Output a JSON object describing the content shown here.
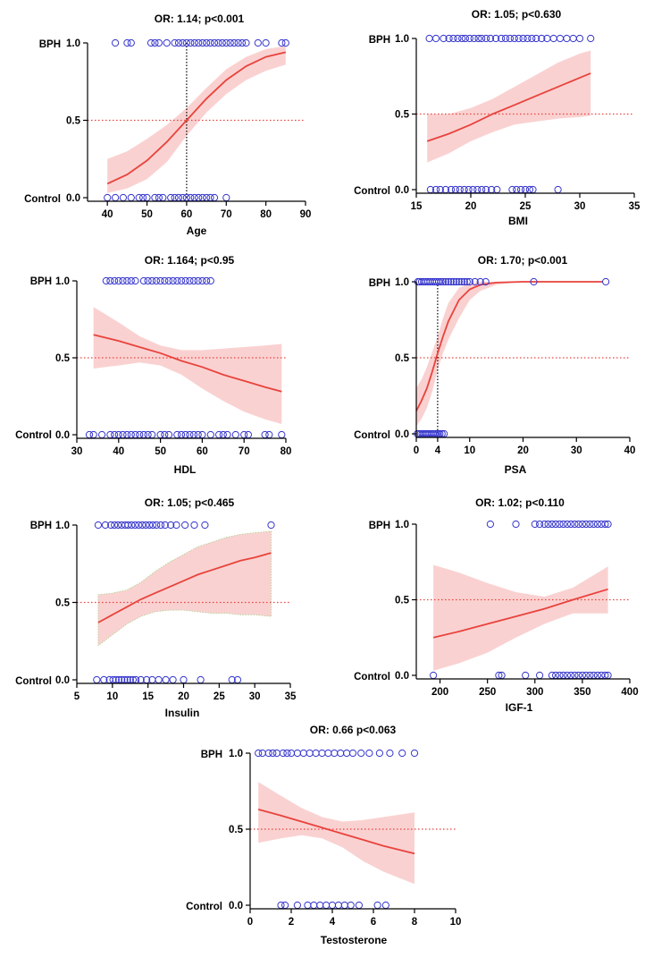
{
  "figure": {
    "description_free": true
  },
  "chart_data": [
    {
      "type": "scatter",
      "title": "OR: 1.14; p<0.001",
      "xlabel": "Age",
      "ylabel": "",
      "xlim": [
        35,
        90
      ],
      "ylim": [
        0,
        1
      ],
      "xticks": [
        40,
        50,
        60,
        70,
        80,
        90
      ],
      "yticks": [
        0.0,
        0.5,
        1.0
      ],
      "ytick_labels": [
        "0.0",
        "0.5",
        "1.0"
      ],
      "category_labels": {
        "top": "BPH",
        "bottom": "Control"
      },
      "series": [
        {
          "name": "BPH",
          "y": 1,
          "x": [
            42,
            45,
            46,
            51,
            52,
            53,
            55,
            57,
            58,
            59,
            60,
            61,
            62,
            63,
            64,
            65,
            66,
            67,
            68,
            69,
            70,
            71,
            72,
            73,
            74,
            75,
            78,
            80,
            84,
            85
          ]
        },
        {
          "name": "Control",
          "y": 0,
          "x": [
            40,
            42,
            44,
            46,
            48,
            49,
            50,
            52,
            53,
            54,
            56,
            57,
            58,
            59,
            60,
            61,
            62,
            63,
            64,
            65,
            66,
            67,
            70
          ]
        }
      ],
      "fit": {
        "x": [
          40,
          45,
          50,
          55,
          60,
          65,
          70,
          75,
          80,
          85
        ],
        "y": [
          0.09,
          0.15,
          0.24,
          0.36,
          0.5,
          0.64,
          0.76,
          0.85,
          0.91,
          0.94
        ]
      },
      "ci_upper": [
        0.25,
        0.3,
        0.38,
        0.47,
        0.58,
        0.71,
        0.83,
        0.91,
        0.96,
        0.98
      ],
      "ci_lower": [
        0.03,
        0.06,
        0.12,
        0.23,
        0.4,
        0.55,
        0.67,
        0.76,
        0.82,
        0.86
      ],
      "reference_y": 0.5,
      "reference_x": 60
    },
    {
      "type": "scatter",
      "title": "OR: 1.05; p<0.630",
      "xlabel": "BMI",
      "ylabel": "",
      "xlim": [
        15,
        35
      ],
      "ylim": [
        0,
        1
      ],
      "xticks": [
        15,
        20,
        25,
        30,
        35
      ],
      "yticks": [
        0.0,
        0.5,
        1.0
      ],
      "ytick_labels": [
        "0.0",
        "0.5",
        "1.0"
      ],
      "category_labels": {
        "top": "BPH",
        "bottom": "Control"
      },
      "series": [
        {
          "name": "BPH",
          "y": 1,
          "x": [
            16.2,
            16.8,
            17.5,
            18,
            18.4,
            18.8,
            19.2,
            19.5,
            19.9,
            20.3,
            20.7,
            21,
            21.4,
            21.8,
            22.3,
            22.8,
            23.2,
            23.6,
            24,
            24.4,
            24.8,
            25.2,
            25.6,
            26,
            26.5,
            27,
            27.6,
            28.2,
            28.8,
            29.4,
            30,
            31
          ]
        },
        {
          "name": "Control",
          "y": 0,
          "x": [
            16.3,
            16.8,
            17.2,
            17.7,
            18.2,
            18.6,
            19,
            19.4,
            19.8,
            20.2,
            20.6,
            21,
            21.4,
            21.9,
            22.4,
            23.8,
            24.2,
            24.6,
            25,
            25.4,
            25.7,
            28
          ]
        }
      ],
      "fit": {
        "x": [
          16,
          18,
          20,
          22,
          24,
          26,
          28,
          30,
          31
        ],
        "y": [
          0.32,
          0.37,
          0.43,
          0.5,
          0.56,
          0.62,
          0.68,
          0.74,
          0.77
        ]
      },
      "ci_upper": [
        0.5,
        0.5,
        0.54,
        0.6,
        0.68,
        0.76,
        0.84,
        0.9,
        0.92
      ],
      "ci_lower": [
        0.18,
        0.24,
        0.32,
        0.38,
        0.43,
        0.45,
        0.47,
        0.48,
        0.49
      ],
      "reference_y": 0.5
    },
    {
      "type": "scatter",
      "title": "OR: 1.164; p<0.95",
      "xlabel": "HDL",
      "ylabel": "",
      "xlim": [
        30,
        80
      ],
      "ylim": [
        0,
        1
      ],
      "xticks": [
        30,
        40,
        50,
        60,
        70,
        80
      ],
      "yticks": [
        0.0,
        0.5,
        1.0
      ],
      "ytick_labels": [
        "0.0",
        "0.5",
        "1.0"
      ],
      "category_labels": {
        "top": "BPH",
        "bottom": "Control"
      },
      "series": [
        {
          "name": "BPH",
          "y": 1,
          "x": [
            37,
            38,
            39,
            40,
            41,
            42,
            43,
            44,
            46,
            47,
            48,
            49,
            50,
            51,
            52,
            53,
            54,
            55,
            56,
            57,
            58,
            59,
            60,
            61,
            62
          ]
        },
        {
          "name": "Control",
          "y": 0,
          "x": [
            33,
            34,
            36,
            38,
            39,
            40,
            41,
            42,
            43,
            44,
            45,
            46,
            47,
            48,
            50,
            51,
            52,
            54,
            55,
            56,
            57,
            58,
            59,
            60,
            62,
            64,
            65,
            66,
            68,
            70,
            71,
            75,
            76,
            79
          ]
        }
      ],
      "fit": {
        "x": [
          34,
          40,
          45,
          50,
          55,
          60,
          65,
          70,
          75,
          79
        ],
        "y": [
          0.65,
          0.61,
          0.57,
          0.53,
          0.48,
          0.44,
          0.39,
          0.35,
          0.31,
          0.28
        ]
      },
      "ci_upper": [
        0.83,
        0.73,
        0.64,
        0.58,
        0.55,
        0.55,
        0.56,
        0.57,
        0.58,
        0.59
      ],
      "ci_lower": [
        0.43,
        0.45,
        0.47,
        0.45,
        0.39,
        0.3,
        0.22,
        0.15,
        0.1,
        0.07
      ],
      "reference_y": 0.5
    },
    {
      "type": "scatter",
      "title": "OR: 1.70; p<0.001",
      "xlabel": "PSA",
      "ylabel": "",
      "xlim": [
        0,
        40
      ],
      "ylim": [
        0,
        1
      ],
      "xticks": [
        0,
        4,
        10,
        20,
        30,
        40
      ],
      "yticks": [
        0.0,
        0.5,
        1.0
      ],
      "ytick_labels": [
        "0.0",
        "0.5",
        "1.0"
      ],
      "category_labels": {
        "top": "BPH",
        "bottom": "Control"
      },
      "series": [
        {
          "name": "BPH",
          "y": 1,
          "x": [
            0.3,
            0.6,
            1,
            1.4,
            1.8,
            2.2,
            2.6,
            3,
            3.4,
            3.8,
            4.2,
            4.6,
            5,
            5.5,
            6,
            6.5,
            7,
            7.5,
            8,
            8.5,
            9,
            9.5,
            10,
            11,
            12,
            13,
            22,
            35.5
          ]
        },
        {
          "name": "Control",
          "y": 0,
          "x": [
            0.2,
            0.5,
            0.8,
            1.1,
            1.4,
            1.7,
            2,
            2.3,
            2.6,
            2.9,
            3.2,
            3.5,
            3.8,
            4.1,
            4.4,
            4.8,
            5.2
          ]
        }
      ],
      "fit": {
        "x": [
          0,
          1,
          2,
          3,
          4,
          5,
          6,
          8,
          10,
          12,
          15,
          20,
          35
        ],
        "y": [
          0.15,
          0.22,
          0.3,
          0.41,
          0.53,
          0.64,
          0.74,
          0.88,
          0.95,
          0.98,
          0.995,
          1,
          1
        ]
      },
      "ci_upper": [
        0.3,
        0.36,
        0.44,
        0.54,
        0.64,
        0.76,
        0.86,
        0.96,
        0.99,
        1,
        1,
        1,
        1
      ],
      "ci_lower": [
        0.05,
        0.1,
        0.17,
        0.28,
        0.42,
        0.53,
        0.62,
        0.76,
        0.88,
        0.94,
        0.98,
        1,
        1
      ],
      "reference_y": 0.5,
      "reference_x": 4
    },
    {
      "type": "scatter",
      "title": "OR: 1.05; p<0.465",
      "xlabel": "Insulin",
      "ylabel": "",
      "xlim": [
        5,
        35
      ],
      "ylim": [
        0,
        1
      ],
      "xticks": [
        5,
        10,
        15,
        20,
        25,
        30,
        35
      ],
      "yticks": [
        0.0,
        0.5,
        1.0
      ],
      "ytick_labels": [
        "0.0",
        "0.5",
        "1.0"
      ],
      "category_labels": {
        "top": "BPH",
        "bottom": "Control"
      },
      "series": [
        {
          "name": "BPH",
          "y": 1,
          "x": [
            8,
            9,
            9.8,
            10.3,
            10.8,
            11.3,
            11.8,
            12.2,
            12.7,
            13.2,
            13.7,
            14.2,
            14.7,
            15.2,
            15.7,
            16.2,
            16.8,
            17.4,
            18.2,
            19,
            20.2,
            21.5,
            23,
            32.3
          ]
        },
        {
          "name": "Control",
          "y": 0,
          "x": [
            7.8,
            8.8,
            9.6,
            10.1,
            10.5,
            10.9,
            11.3,
            11.7,
            12.1,
            12.5,
            12.9,
            13.3,
            14,
            14.8,
            15.6,
            16.5,
            17.5,
            18.5,
            20,
            22.4,
            26.8,
            27.6
          ]
        }
      ],
      "fit": {
        "x": [
          8,
          10,
          12,
          14,
          16,
          18,
          20,
          22,
          24,
          26,
          28,
          30,
          32.3
        ],
        "y": [
          0.37,
          0.42,
          0.47,
          0.52,
          0.56,
          0.6,
          0.64,
          0.68,
          0.71,
          0.74,
          0.77,
          0.79,
          0.82
        ]
      },
      "ci_upper": [
        0.55,
        0.56,
        0.58,
        0.63,
        0.7,
        0.76,
        0.81,
        0.86,
        0.89,
        0.92,
        0.94,
        0.95,
        0.96
      ],
      "ci_lower": [
        0.22,
        0.29,
        0.36,
        0.41,
        0.44,
        0.45,
        0.45,
        0.44,
        0.43,
        0.43,
        0.42,
        0.42,
        0.41
      ],
      "reference_y": 0.5
    },
    {
      "type": "scatter",
      "title": "OR: 1.02; p<0.110",
      "xlabel": "IGF-1",
      "ylabel": "",
      "xlim": [
        175,
        400
      ],
      "ylim": [
        0,
        1
      ],
      "xticks": [
        200,
        250,
        300,
        350,
        400
      ],
      "yticks": [
        0.0,
        0.5,
        1.0
      ],
      "ytick_labels": [
        "0.0",
        "0.5",
        "1.0"
      ],
      "category_labels": {
        "top": "BPH",
        "bottom": "Control"
      },
      "series": [
        {
          "name": "BPH",
          "y": 1,
          "x": [
            253,
            280,
            300,
            305,
            310,
            314,
            318,
            322,
            326,
            330,
            334,
            338,
            342,
            346,
            350,
            354,
            358,
            362,
            366,
            370,
            374,
            377
          ]
        },
        {
          "name": "Control",
          "y": 0,
          "x": [
            193,
            262,
            265,
            290,
            305,
            318,
            322,
            326,
            330,
            334,
            338,
            342,
            346,
            350,
            354,
            358,
            362,
            366,
            370,
            374,
            377
          ]
        }
      ],
      "fit": {
        "x": [
          193,
          220,
          250,
          280,
          310,
          340,
          377
        ],
        "y": [
          0.25,
          0.29,
          0.34,
          0.39,
          0.44,
          0.5,
          0.57
        ]
      },
      "ci_upper": [
        0.73,
        0.68,
        0.61,
        0.55,
        0.52,
        0.58,
        0.72
      ],
      "ci_lower": [
        0.03,
        0.08,
        0.15,
        0.25,
        0.34,
        0.41,
        0.41
      ],
      "reference_y": 0.5
    },
    {
      "type": "scatter",
      "title": "OR: 0.66 p<0.063",
      "xlabel": "Testosterone",
      "ylabel": "",
      "xlim": [
        0,
        10
      ],
      "ylim": [
        0,
        1
      ],
      "xticks": [
        0,
        2,
        4,
        6,
        8,
        10
      ],
      "yticks": [
        0.0,
        0.5,
        1.0
      ],
      "ytick_labels": [
        "0.0",
        "0.5",
        "1.0"
      ],
      "category_labels": {
        "top": "BPH",
        "bottom": "Control"
      },
      "series": [
        {
          "name": "BPH",
          "y": 1,
          "x": [
            0.4,
            0.6,
            0.9,
            1.1,
            1.3,
            1.6,
            1.8,
            2,
            2.3,
            2.6,
            2.9,
            3.2,
            3.5,
            3.8,
            4.1,
            4.4,
            4.7,
            5,
            5.4,
            5.8,
            6.3,
            6.8,
            7.4,
            8
          ]
        },
        {
          "name": "Control",
          "y": 0,
          "x": [
            1.5,
            1.7,
            2.3,
            2.8,
            3.1,
            3.4,
            3.7,
            4,
            4.3,
            4.6,
            4.9,
            5.3,
            6.2,
            6.6
          ]
        }
      ],
      "fit": {
        "x": [
          0.4,
          1.5,
          2.5,
          3.5,
          4.5,
          5.5,
          6.5,
          8
        ],
        "y": [
          0.63,
          0.59,
          0.55,
          0.51,
          0.47,
          0.43,
          0.39,
          0.34
        ]
      },
      "ci_upper": [
        0.81,
        0.72,
        0.64,
        0.58,
        0.55,
        0.56,
        0.58,
        0.61
      ],
      "ci_lower": [
        0.41,
        0.44,
        0.46,
        0.44,
        0.38,
        0.29,
        0.22,
        0.14
      ],
      "reference_y": 0.5
    }
  ],
  "colors": {
    "points": "#3333cc",
    "fit": "#e8433c",
    "band": "#f9c9c9",
    "band_edge": "#a8d08a",
    "reference": "#e8433c",
    "axis": "#000000"
  }
}
